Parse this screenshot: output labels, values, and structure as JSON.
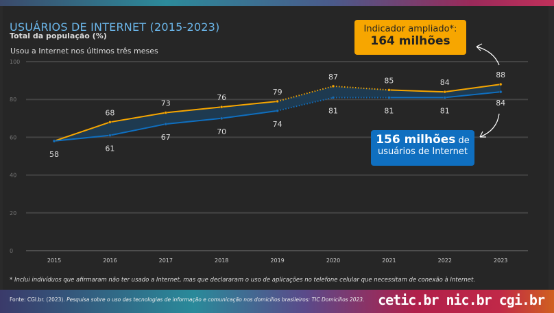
{
  "title": "USUÁRIOS DE INTERNET (2015-2023)",
  "subtitle": "Total da população (%)",
  "callout_orange": {
    "line1": "Indicador ampliado*:",
    "line2": "164 milhões"
  },
  "callout_blue": {
    "bold": "156 milhões",
    "rest": " de",
    "line2": "usuários de Internet"
  },
  "footnote": "* Inclui indivíduos que afirmaram não ter usado a Internet, mas que declararam o uso de aplicações no telefone celular que necessitam de conexão à Internet.",
  "source_prefix": "Fonte: CGI.br. (2023). ",
  "source_italic": "Pesquisa sobre o uso das tecnologias de informação e comunicação nos domicílios brasileiros: TIC Domicílios 2023.",
  "logos": "cetic.br nic.br cgi.br",
  "colors": {
    "ampliado": "#f7a600",
    "usuarios": "#0f6fc0",
    "band": "#1e3a50"
  },
  "chart_data": {
    "type": "line",
    "series_label": "Usou a Internet nos últimos três meses",
    "categories": [
      "2015",
      "2016",
      "2017",
      "2018",
      "2019",
      "2020",
      "2021",
      "2022",
      "2023"
    ],
    "series": [
      {
        "values": [
          58,
          68,
          73,
          76,
          79,
          87,
          85,
          84,
          88
        ]
      },
      {
        "values": [
          58,
          61,
          67,
          70,
          74,
          81,
          81,
          81,
          84
        ]
      }
    ],
    "dotted_between": [
      "2019",
      "2021"
    ],
    "ylim": [
      0,
      100
    ],
    "yticks": [
      0,
      20,
      40,
      60,
      80,
      100
    ],
    "grid": true
  }
}
